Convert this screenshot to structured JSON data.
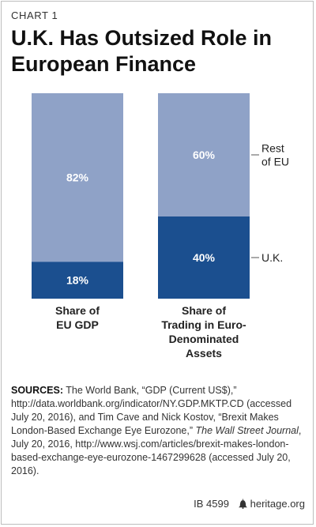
{
  "header": {
    "chart_label": "CHART 1",
    "title_line1": "U.K. Has Outsized Role in",
    "title_line2": "European Finance"
  },
  "colors": {
    "rest_of_eu": "#8fa2c7",
    "uk": "#1b4f8f",
    "bar_text": "#ffffff",
    "text": "#222222"
  },
  "chart_data": {
    "type": "bar",
    "stacked": true,
    "categories": [
      [
        "Share of",
        "EU GDP"
      ],
      [
        "Share of",
        "Trading in Euro-",
        "Denominated",
        "Assets"
      ]
    ],
    "series": [
      {
        "name": "U.K.",
        "values": [
          18,
          40
        ],
        "labels": [
          "18%",
          "40%"
        ]
      },
      {
        "name": "Rest of EU",
        "values": [
          82,
          60
        ],
        "labels": [
          "82%",
          "60%"
        ]
      }
    ],
    "legend": {
      "placement": "right",
      "entries": [
        {
          "series": "Rest of EU",
          "lines": [
            "Rest",
            "of EU"
          ]
        },
        {
          "series": "U.K.",
          "lines": [
            "U.K."
          ]
        }
      ]
    },
    "ylim": [
      0,
      100
    ]
  },
  "sources": {
    "heading": "SOURCES:",
    "text_before_italic": " The World Bank, “GDP (Current US$),” http://data.worldbank.org/indicator/NY.GDP.MKTP.CD (accessed July 20, 2016), and Tim Cave and Nick Kostov, “Brexit Makes London-Based Exchange Eye Eurozone,” ",
    "italic": "The Wall Street Journal",
    "text_after_italic": ", July 20, 2016, http://www.wsj.com/articles/brexit-makes-london-based-exchange-eye-eurozone-1467299628 (accessed July 20, 2016)."
  },
  "footer": {
    "report_id": "IB 4599",
    "site": "heritage.org",
    "logo_icon": "liberty-bell-icon"
  }
}
